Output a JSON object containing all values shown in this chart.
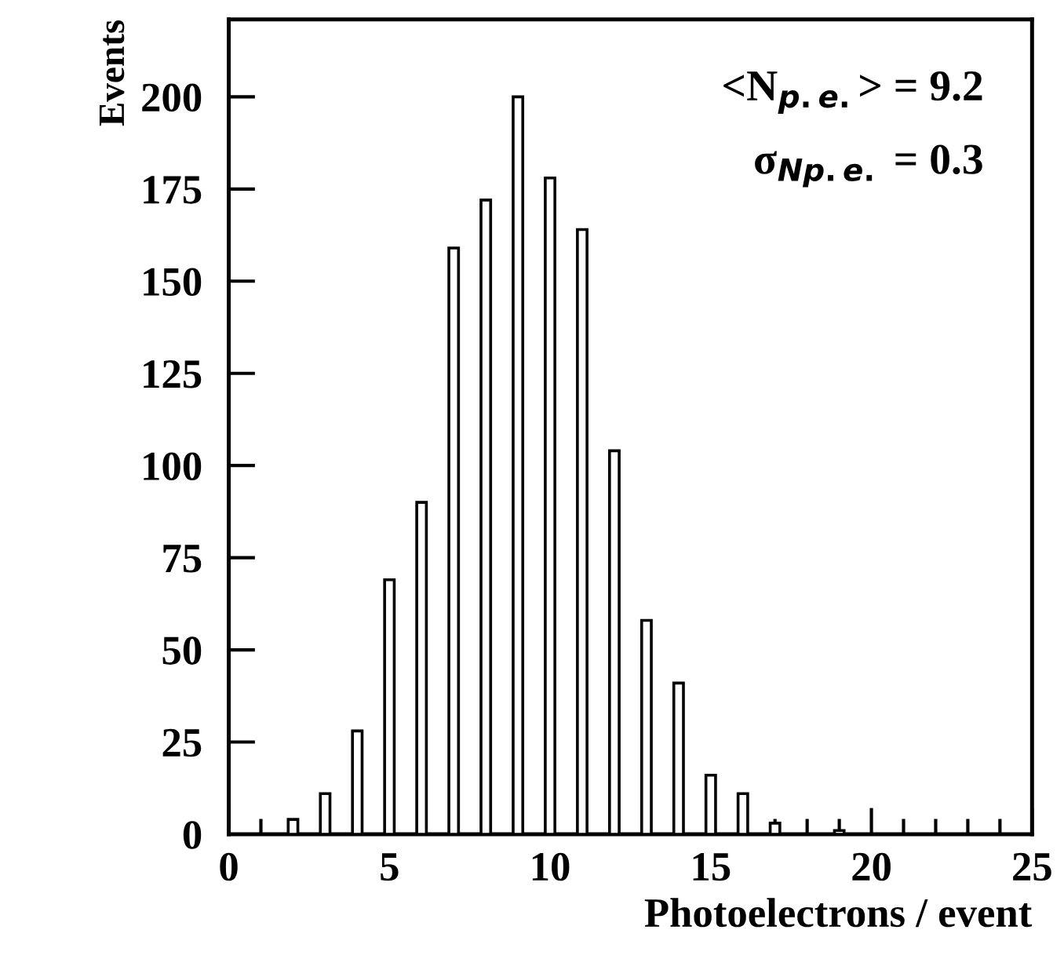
{
  "chart_data": {
    "type": "bar",
    "xlabel": "Photoelectrons / event",
    "ylabel": "Events",
    "x": [
      2,
      3,
      4,
      5,
      6,
      7,
      8,
      9,
      10,
      11,
      12,
      13,
      14,
      15,
      16,
      17,
      19
    ],
    "values": [
      4,
      11,
      28,
      69,
      90,
      159,
      172,
      200,
      178,
      164,
      104,
      58,
      41,
      16,
      11,
      3,
      1
    ],
    "color": "#ffffff",
    "xlim": [
      0,
      25
    ],
    "xticks": [
      0,
      5,
      10,
      15,
      20,
      25
    ],
    "ylim": [
      0,
      221
    ],
    "yticks": [
      0,
      25,
      50,
      75,
      100,
      125,
      150,
      175,
      200
    ],
    "grid": false,
    "annotations": [
      "<N$_{p.e.}$> = 9.2",
      "σ$_{Np.e.}$ = 0.3"
    ]
  }
}
